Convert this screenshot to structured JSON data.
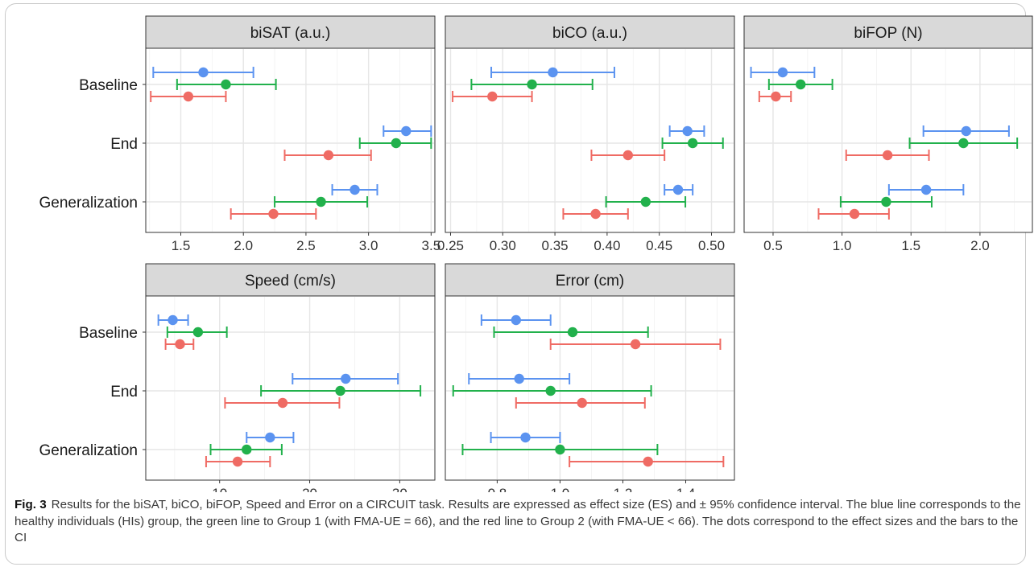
{
  "colors": {
    "hi_group": "#5b93f0",
    "group1": "#22b14c",
    "group2": "#ef6b64"
  },
  "categories": [
    "Baseline",
    "End",
    "Generalization"
  ],
  "caption": {
    "fig_label": "Fig. 3",
    "text": "Results for the biSAT, biCO, biFOP, Speed and Error on a CIRCUIT task. Results are expressed as effect size (ES) and ± 95% confidence interval. The blue line corresponds to the healthy individuals (HIs) group, the green line to Group 1 (with FMA-UE = 66), and the red line to Group 2 (with FMA-UE < 66). The dots correspond to the effect sizes and the bars to the CI"
  },
  "chart_data": [
    {
      "type": "scatter",
      "title": "biSAT (a.u.)",
      "categories": [
        "Baseline",
        "End",
        "Generalization"
      ],
      "xlim": [
        1.22,
        3.53
      ],
      "xticks": [
        1.5,
        2.0,
        2.5,
        3.0,
        3.5
      ],
      "xtick_labels": [
        "1.5",
        "2.0",
        "2.5",
        "3.0",
        "3.5"
      ],
      "series": [
        {
          "color_key": "hi_group",
          "points": [
            {
              "category": "Baseline",
              "estimate": 1.68,
              "lower": 1.28,
              "upper": 2.08
            },
            {
              "category": "End",
              "estimate": 3.3,
              "lower": 3.12,
              "upper": 3.5
            },
            {
              "category": "Generalization",
              "estimate": 2.89,
              "lower": 2.71,
              "upper": 3.07
            }
          ]
        },
        {
          "color_key": "group1",
          "points": [
            {
              "category": "Baseline",
              "estimate": 1.86,
              "lower": 1.47,
              "upper": 2.26
            },
            {
              "category": "End",
              "estimate": 3.22,
              "lower": 2.93,
              "upper": 3.5
            },
            {
              "category": "Generalization",
              "estimate": 2.62,
              "lower": 2.25,
              "upper": 2.99
            }
          ]
        },
        {
          "color_key": "group2",
          "points": [
            {
              "category": "Baseline",
              "estimate": 1.56,
              "lower": 1.26,
              "upper": 1.86
            },
            {
              "category": "End",
              "estimate": 2.68,
              "lower": 2.33,
              "upper": 3.02
            },
            {
              "category": "Generalization",
              "estimate": 2.24,
              "lower": 1.9,
              "upper": 2.58
            }
          ]
        }
      ]
    },
    {
      "type": "scatter",
      "title": "biCO (a.u.)",
      "categories": [
        "Baseline",
        "End",
        "Generalization"
      ],
      "xlim": [
        0.245,
        0.522
      ],
      "xticks": [
        0.25,
        0.3,
        0.35,
        0.4,
        0.45,
        0.5
      ],
      "xtick_labels": [
        "0.25",
        "0.30",
        "0.35",
        "0.40",
        "0.45",
        "0.50"
      ],
      "series": [
        {
          "color_key": "hi_group",
          "points": [
            {
              "category": "Baseline",
              "estimate": 0.348,
              "lower": 0.289,
              "upper": 0.407
            },
            {
              "category": "End",
              "estimate": 0.477,
              "lower": 0.46,
              "upper": 0.493
            },
            {
              "category": "Generalization",
              "estimate": 0.468,
              "lower": 0.455,
              "upper": 0.482
            }
          ]
        },
        {
          "color_key": "group1",
          "points": [
            {
              "category": "Baseline",
              "estimate": 0.328,
              "lower": 0.27,
              "upper": 0.386
            },
            {
              "category": "End",
              "estimate": 0.482,
              "lower": 0.453,
              "upper": 0.511
            },
            {
              "category": "Generalization",
              "estimate": 0.437,
              "lower": 0.399,
              "upper": 0.475
            }
          ]
        },
        {
          "color_key": "group2",
          "points": [
            {
              "category": "Baseline",
              "estimate": 0.29,
              "lower": 0.252,
              "upper": 0.328
            },
            {
              "category": "End",
              "estimate": 0.42,
              "lower": 0.385,
              "upper": 0.455
            },
            {
              "category": "Generalization",
              "estimate": 0.389,
              "lower": 0.358,
              "upper": 0.42
            }
          ]
        }
      ]
    },
    {
      "type": "scatter",
      "title": "biFOP (N)",
      "categories": [
        "Baseline",
        "End",
        "Generalization"
      ],
      "xlim": [
        0.29,
        2.38
      ],
      "xticks": [
        0.5,
        1.0,
        1.5,
        2.0
      ],
      "xtick_labels": [
        "0.5",
        "1.0",
        "1.5",
        "2.0"
      ],
      "series": [
        {
          "color_key": "hi_group",
          "points": [
            {
              "category": "Baseline",
              "estimate": 0.57,
              "lower": 0.34,
              "upper": 0.8
            },
            {
              "category": "End",
              "estimate": 1.9,
              "lower": 1.59,
              "upper": 2.21
            },
            {
              "category": "Generalization",
              "estimate": 1.61,
              "lower": 1.34,
              "upper": 1.88
            }
          ]
        },
        {
          "color_key": "group1",
          "points": [
            {
              "category": "Baseline",
              "estimate": 0.7,
              "lower": 0.47,
              "upper": 0.93
            },
            {
              "category": "End",
              "estimate": 1.88,
              "lower": 1.49,
              "upper": 2.27
            },
            {
              "category": "Generalization",
              "estimate": 1.32,
              "lower": 0.99,
              "upper": 1.65
            }
          ]
        },
        {
          "color_key": "group2",
          "points": [
            {
              "category": "Baseline",
              "estimate": 0.52,
              "lower": 0.4,
              "upper": 0.63
            },
            {
              "category": "End",
              "estimate": 1.33,
              "lower": 1.03,
              "upper": 1.63
            },
            {
              "category": "Generalization",
              "estimate": 1.09,
              "lower": 0.83,
              "upper": 1.34
            }
          ]
        }
      ]
    },
    {
      "type": "scatter",
      "title": "Speed (cm/s)",
      "categories": [
        "Baseline",
        "End",
        "Generalization"
      ],
      "xlim": [
        1.8,
        33.9
      ],
      "xticks": [
        10,
        20,
        30
      ],
      "xtick_labels": [
        "10",
        "20",
        "30"
      ],
      "series": [
        {
          "color_key": "hi_group",
          "points": [
            {
              "category": "Baseline",
              "estimate": 4.8,
              "lower": 3.2,
              "upper": 6.5
            },
            {
              "category": "End",
              "estimate": 24.0,
              "lower": 18.1,
              "upper": 29.8
            },
            {
              "category": "Generalization",
              "estimate": 15.6,
              "lower": 13.0,
              "upper": 18.2
            }
          ]
        },
        {
          "color_key": "group1",
          "points": [
            {
              "category": "Baseline",
              "estimate": 7.6,
              "lower": 4.2,
              "upper": 10.8
            },
            {
              "category": "End",
              "estimate": 23.4,
              "lower": 14.6,
              "upper": 32.3
            },
            {
              "category": "Generalization",
              "estimate": 13.0,
              "lower": 9.0,
              "upper": 16.9
            }
          ]
        },
        {
          "color_key": "group2",
          "points": [
            {
              "category": "Baseline",
              "estimate": 5.6,
              "lower": 4.0,
              "upper": 7.1
            },
            {
              "category": "End",
              "estimate": 17.0,
              "lower": 10.6,
              "upper": 23.3
            },
            {
              "category": "Generalization",
              "estimate": 12.0,
              "lower": 8.5,
              "upper": 15.6
            }
          ]
        }
      ]
    },
    {
      "type": "scatter",
      "title": "Error (cm)",
      "categories": [
        "Baseline",
        "End",
        "Generalization"
      ],
      "xlim": [
        0.635,
        1.555
      ],
      "xticks": [
        0.8,
        1.0,
        1.2,
        1.4
      ],
      "xtick_labels": [
        "0.8",
        "1.0",
        "1.2",
        "1.4"
      ],
      "series": [
        {
          "color_key": "hi_group",
          "points": [
            {
              "category": "Baseline",
              "estimate": 0.86,
              "lower": 0.75,
              "upper": 0.97
            },
            {
              "category": "End",
              "estimate": 0.87,
              "lower": 0.71,
              "upper": 1.03
            },
            {
              "category": "Generalization",
              "estimate": 0.89,
              "lower": 0.78,
              "upper": 1.0
            }
          ]
        },
        {
          "color_key": "group1",
          "points": [
            {
              "category": "Baseline",
              "estimate": 1.04,
              "lower": 0.79,
              "upper": 1.28
            },
            {
              "category": "End",
              "estimate": 0.97,
              "lower": 0.66,
              "upper": 1.29
            },
            {
              "category": "Generalization",
              "estimate": 1.0,
              "lower": 0.69,
              "upper": 1.31
            }
          ]
        },
        {
          "color_key": "group2",
          "points": [
            {
              "category": "Baseline",
              "estimate": 1.24,
              "lower": 0.97,
              "upper": 1.51
            },
            {
              "category": "End",
              "estimate": 1.07,
              "lower": 0.86,
              "upper": 1.27
            },
            {
              "category": "Generalization",
              "estimate": 1.28,
              "lower": 1.03,
              "upper": 1.52
            }
          ]
        }
      ]
    }
  ]
}
